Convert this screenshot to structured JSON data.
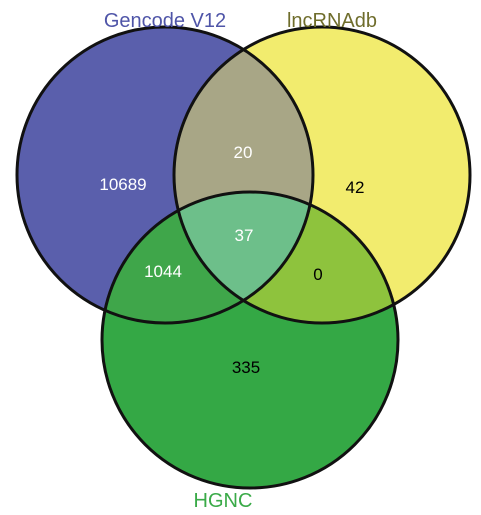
{
  "sets": [
    {
      "name": "Gencode V12",
      "color": "#5a5fac",
      "label_color": "#4f55a8"
    },
    {
      "name": "lncRNAdb",
      "color": "#f2ec6e",
      "label_color": "#6f6d2c"
    },
    {
      "name": "HGNC",
      "color": "#34a845",
      "label_color": "#3aaa48"
    }
  ],
  "regions": {
    "gencode_only": "10689",
    "lncrnadb_only": "42",
    "hgnc_only": "335",
    "gencode_lncrnadb": "20",
    "gencode_hgnc": "1044",
    "lncrnadb_hgnc": "0",
    "all_three": "37"
  }
}
